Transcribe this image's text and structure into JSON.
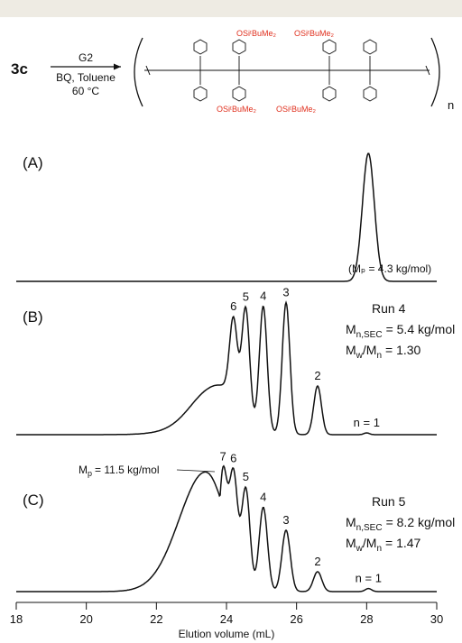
{
  "scheme": {
    "reactant": "3c",
    "catalyst": "G2",
    "conditions_1": "BQ, Toluene",
    "conditions_2": "60 °C",
    "silyl_group": "OSiᵗBuMe₂",
    "repeat_subscript": "n"
  },
  "chart_data": [
    {
      "type": "line",
      "panel_label": "(A)",
      "x": [
        18,
        27.6,
        27.8,
        28.0,
        28.05,
        28.3,
        28.5,
        30
      ],
      "y": [
        0.0,
        0.02,
        0.45,
        0.97,
        1.0,
        0.35,
        0.03,
        0.0
      ],
      "annotations": []
    },
    {
      "type": "line",
      "panel_label": "(B)",
      "run": "Run 4",
      "mn_sec": "= 5.4 kg/mol",
      "mw_mn": "= 1.30",
      "peaks": [
        {
          "label": "n = 1",
          "x": 28.0,
          "y": 0.01
        },
        {
          "label": "2",
          "x": 26.6,
          "y": 0.27
        },
        {
          "label": "3",
          "x": 25.7,
          "y": 0.73
        },
        {
          "label": "4",
          "x": 25.05,
          "y": 0.69
        },
        {
          "label": "5",
          "x": 24.55,
          "y": 0.59
        },
        {
          "label": "6",
          "x": 24.2,
          "y": 0.43
        }
      ],
      "peak_annotation": "(Mₚ = 4.3 kg/mol)"
    },
    {
      "type": "line",
      "panel_label": "(C)",
      "run": "Run 5",
      "mn_sec": "= 8.2 kg/mol",
      "mw_mn": "= 1.47",
      "peaks": [
        {
          "label": "n = 1",
          "x": 28.05,
          "y": 0.02
        },
        {
          "label": "2",
          "x": 26.6,
          "y": 0.13
        },
        {
          "label": "3",
          "x": 25.7,
          "y": 0.4
        },
        {
          "label": "4",
          "x": 25.05,
          "y": 0.55
        },
        {
          "label": "5",
          "x": 24.55,
          "y": 0.67
        },
        {
          "label": "6",
          "x": 24.2,
          "y": 0.76
        },
        {
          "label": "7",
          "x": 23.9,
          "y": 0.78
        }
      ],
      "mp_annotation": "= 11.5 kg/mol"
    },
    {
      "type": "axis",
      "xlabel": "Elution volume (mL)",
      "xlim": [
        18,
        30
      ],
      "xticks": [
        "18",
        "20",
        "22",
        "24",
        "26",
        "28",
        "30"
      ]
    }
  ]
}
